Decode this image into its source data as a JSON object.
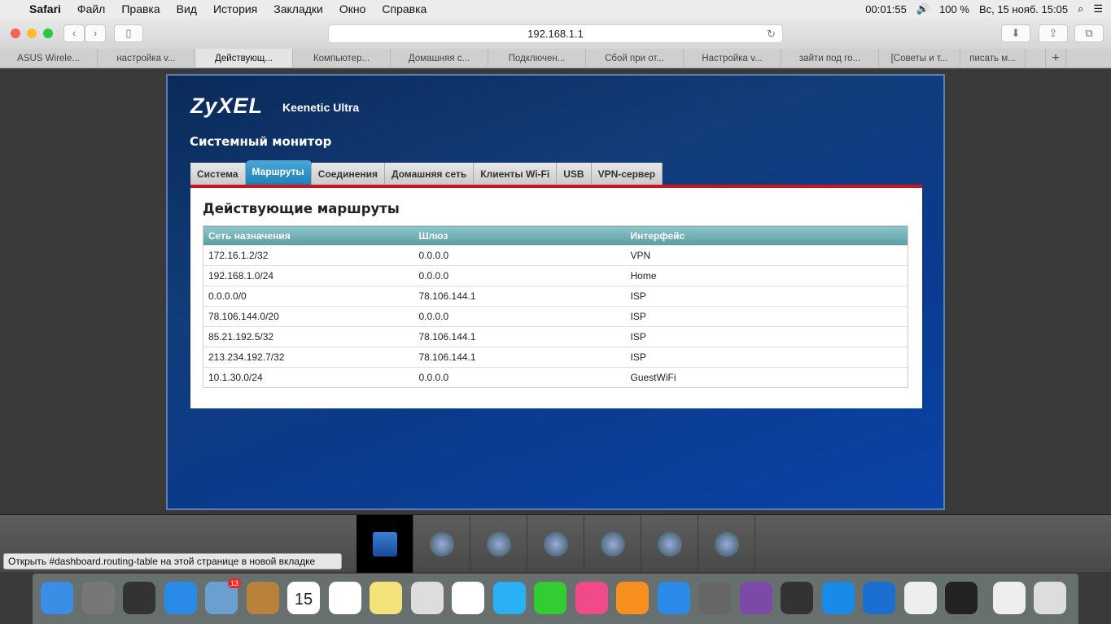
{
  "menubar": {
    "app": "Safari",
    "items": [
      "Файл",
      "Правка",
      "Вид",
      "История",
      "Закладки",
      "Окно",
      "Справка"
    ],
    "timer": "00:01:55",
    "battery": "100 %",
    "datetime": "Вс, 15 нояб.  15:05"
  },
  "browser": {
    "url": "192.168.1.1",
    "tabs": [
      "ASUS Wirele...",
      "настройка v...",
      "Действующ...",
      "Компьютер...",
      "Домашняя с...",
      "Подключен...",
      "Сбой при от...",
      "Настройка v...",
      "зайти под го...",
      "[Советы и т...",
      "писать м..."
    ],
    "active_tab": 2,
    "new_tab": "+"
  },
  "router": {
    "brand": "ZyXEL",
    "model": "Keenetic Ultra",
    "section": "Системный монитор",
    "tabs": [
      "Система",
      "Маршруты",
      "Соединения",
      "Домашняя сеть",
      "Клиенты Wi-Fi",
      "USB",
      "VPN-сервер"
    ],
    "active_tab": 1,
    "title": "Действующие маршруты",
    "columns": [
      "Сеть назначения",
      "Шлюз",
      "Интерфейс"
    ],
    "rows": [
      [
        "172.16.1.2/32",
        "0.0.0.0",
        "VPN"
      ],
      [
        "192.168.1.0/24",
        "0.0.0.0",
        "Home"
      ],
      [
        "0.0.0.0/0",
        "78.106.144.1",
        "ISP"
      ],
      [
        "78.106.144.0/20",
        "0.0.0.0",
        "ISP"
      ],
      [
        "85.21.192.5/32",
        "78.106.144.1",
        "ISP"
      ],
      [
        "213.234.192.7/32",
        "78.106.144.1",
        "ISP"
      ],
      [
        "10.1.30.0/24",
        "0.0.0.0",
        "GuestWiFi"
      ]
    ],
    "nav_icons": [
      "monitor-chart-icon",
      "internet-globe-icon",
      "home-network-icon",
      "wifi-signal-icon",
      "security-shield-icon",
      "settings-gear-icon",
      "apps-grid-icon"
    ]
  },
  "status_tooltip": "Открыть #dashboard.routing-table на этой странице в новой вкладке",
  "dock": {
    "mail_badge": "13",
    "calendar_day": "15",
    "colors": [
      "#3a8ee6",
      "#777",
      "#333",
      "#2a8ae8",
      "#6a9fd0",
      "#b8823a",
      "#fff",
      "#fff",
      "#f5e27a",
      "#ddd",
      "#fff",
      "#2ab0f5",
      "#3c3",
      "#f04a8a",
      "#f7901e",
      "#2a8ae8",
      "#666",
      "#7b4aa8",
      "#333",
      "#1a8ae8",
      "#1a6fd0",
      "#eee",
      "#222",
      "#eee",
      "#ddd"
    ]
  }
}
